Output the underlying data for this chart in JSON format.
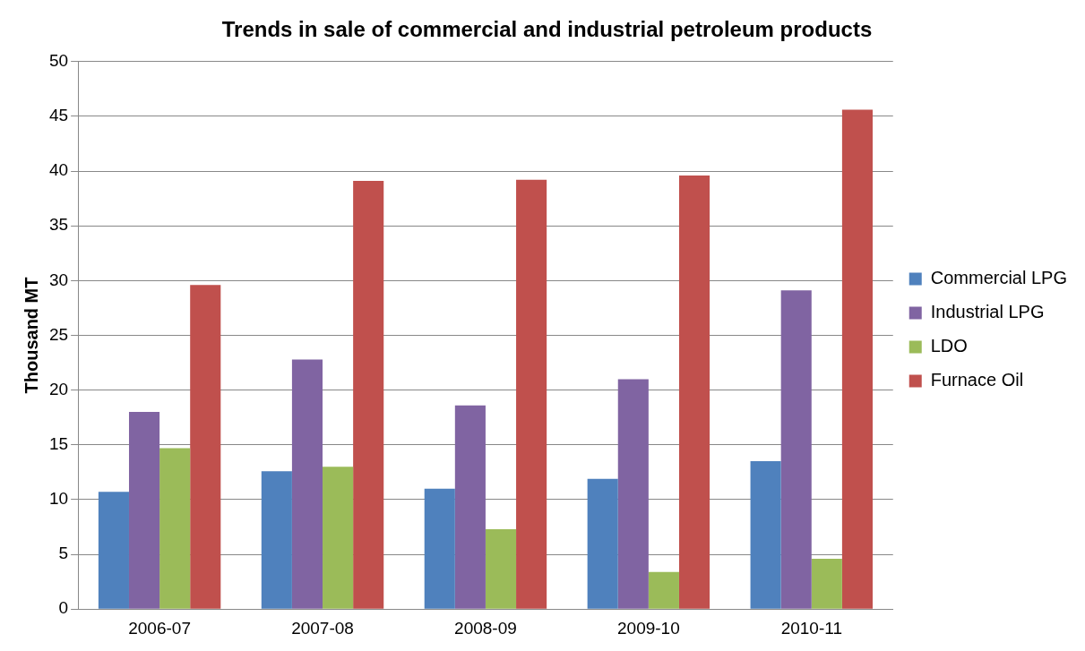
{
  "chart_data": {
    "type": "bar",
    "title": "Trends in sale of commercial and industrial petroleum products",
    "ylabel": "Thousand MT",
    "categories": [
      "2006-07",
      "2007-08",
      "2008-09",
      "2009-10",
      "2010-11"
    ],
    "series": [
      {
        "name": "Commercial LPG",
        "color": "#4f81bd",
        "values": [
          10.7,
          12.6,
          11.0,
          11.9,
          13.5
        ]
      },
      {
        "name": "Industrial LPG",
        "color": "#8064a2",
        "values": [
          18.0,
          22.8,
          18.6,
          21.0,
          29.1
        ]
      },
      {
        "name": "LDO",
        "color": "#9bbb59",
        "values": [
          14.7,
          13.0,
          7.3,
          3.4,
          4.6
        ]
      },
      {
        "name": "Furnace Oil",
        "color": "#c0504d",
        "values": [
          29.6,
          39.1,
          39.2,
          39.6,
          45.6
        ]
      }
    ],
    "ylim": [
      0,
      50
    ],
    "yticks": [
      0,
      5,
      10,
      15,
      20,
      25,
      30,
      35,
      40,
      45,
      50
    ],
    "grid": "y",
    "legend": "right"
  }
}
